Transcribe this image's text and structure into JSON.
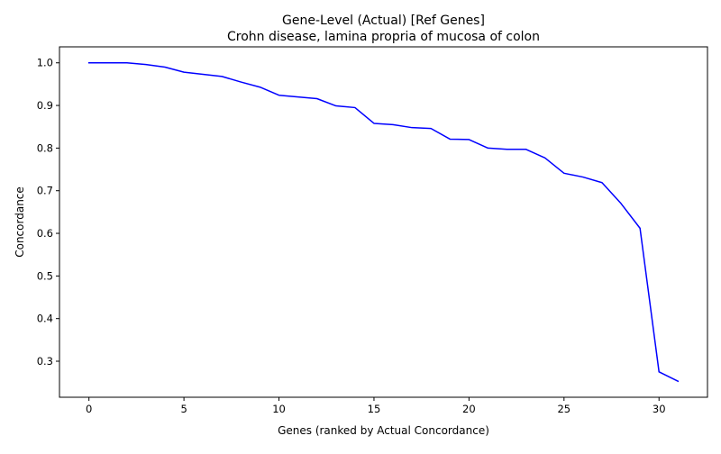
{
  "chart_data": {
    "type": "line",
    "title": "Gene-Level (Actual) [Ref Genes]",
    "subtitle": "Crohn disease, lamina propria of mucosa of colon",
    "xlabel": "Genes (ranked by Actual Concordance)",
    "ylabel": "Concordance",
    "xlim": [
      -1.55,
      32.55
    ],
    "ylim": [
      0.2155,
      1.0375
    ],
    "xticks": [
      0,
      5,
      10,
      15,
      20,
      25,
      30
    ],
    "xtick_labels": [
      "0",
      "5",
      "10",
      "15",
      "20",
      "25",
      "30"
    ],
    "yticks": [
      0.3,
      0.4,
      0.5,
      0.6,
      0.7,
      0.8,
      0.9,
      1.0
    ],
    "ytick_labels": [
      "0.3",
      "0.4",
      "0.5",
      "0.6",
      "0.7",
      "0.8",
      "0.9",
      "1.0"
    ],
    "grid": false,
    "series": [
      {
        "color": "#0000ff",
        "x": [
          0,
          1,
          2,
          3,
          4,
          5,
          6,
          7,
          8,
          9,
          10,
          11,
          12,
          13,
          14,
          15,
          16,
          17,
          18,
          19,
          20,
          21,
          22,
          23,
          24,
          25,
          26,
          27,
          28,
          29,
          30,
          31
        ],
        "y": [
          1.0,
          1.0,
          1.0,
          0.996,
          0.99,
          0.978,
          0.973,
          0.968,
          0.955,
          0.943,
          0.924,
          0.92,
          0.916,
          0.899,
          0.895,
          0.858,
          0.855,
          0.848,
          0.846,
          0.821,
          0.82,
          0.8,
          0.797,
          0.797,
          0.777,
          0.741,
          0.732,
          0.719,
          0.67,
          0.612,
          0.275,
          0.253
        ]
      }
    ]
  }
}
